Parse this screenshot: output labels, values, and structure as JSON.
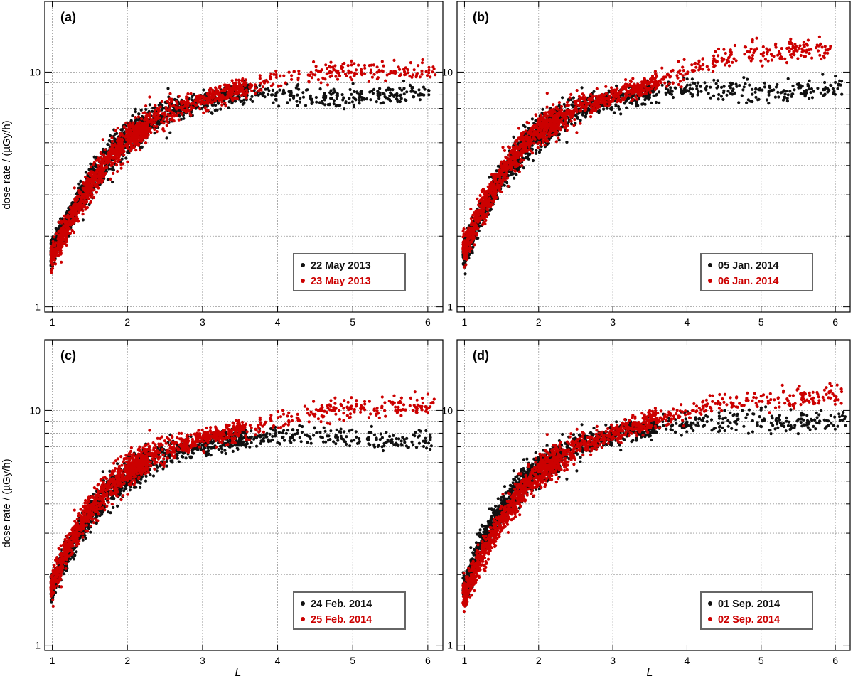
{
  "figure": {
    "ylabel": "dose rate / (µGy/h)",
    "xlabel": "L",
    "colors": {
      "black_series": "#111111",
      "red_series": "#cc0000",
      "grid": "#999999",
      "axis": "#000000",
      "legend_border": "#666666"
    }
  },
  "chart_data": [
    {
      "type": "scatter",
      "panel_label": "(a)",
      "xlim": [
        0.9,
        6.2
      ],
      "ylim": [
        0.95,
        20
      ],
      "yscale": "log",
      "xticks": [
        "1",
        "2",
        "3",
        "4",
        "5",
        "6"
      ],
      "yticks": [
        "1",
        "10"
      ],
      "grid": true,
      "legend_position": "bottom-right",
      "series": [
        {
          "name": "22 May 2013",
          "color": "#111111",
          "curve": [
            [
              1.0,
              1.7
            ],
            [
              1.2,
              2.3
            ],
            [
              1.5,
              3.4
            ],
            [
              1.8,
              4.6
            ],
            [
              2.0,
              5.3
            ],
            [
              2.3,
              6.1
            ],
            [
              2.6,
              6.8
            ],
            [
              3.0,
              7.5
            ],
            [
              3.5,
              8.2
            ],
            [
              4.0,
              8.0
            ],
            [
              4.5,
              7.7
            ],
            [
              5.0,
              7.8
            ],
            [
              5.5,
              8.0
            ],
            [
              6.0,
              8.3
            ]
          ],
          "end_x": 6.05
        },
        {
          "name": "23 May 2013",
          "color": "#cc0000",
          "curve": [
            [
              1.0,
              1.65
            ],
            [
              1.2,
              2.2
            ],
            [
              1.5,
              3.3
            ],
            [
              1.8,
              4.5
            ],
            [
              2.0,
              5.2
            ],
            [
              2.3,
              6.0
            ],
            [
              2.6,
              6.8
            ],
            [
              3.0,
              7.6
            ],
            [
              3.5,
              8.5
            ],
            [
              4.0,
              9.3
            ],
            [
              4.5,
              9.8
            ],
            [
              5.0,
              10.0
            ],
            [
              5.5,
              10.1
            ],
            [
              6.0,
              10.2
            ]
          ],
          "end_x": 6.1
        }
      ]
    },
    {
      "type": "scatter",
      "panel_label": "(b)",
      "xlim": [
        0.9,
        6.2
      ],
      "ylim": [
        0.95,
        20
      ],
      "yscale": "log",
      "xticks": [
        "1",
        "2",
        "3",
        "4",
        "5",
        "6"
      ],
      "yticks": [
        "1",
        "10"
      ],
      "grid": true,
      "legend_position": "bottom-right",
      "series": [
        {
          "name": "05 Jan. 2014",
          "color": "#111111",
          "curve": [
            [
              1.0,
              1.7
            ],
            [
              1.2,
              2.4
            ],
            [
              1.5,
              3.6
            ],
            [
              1.8,
              4.8
            ],
            [
              2.0,
              5.5
            ],
            [
              2.3,
              6.3
            ],
            [
              2.6,
              7.0
            ],
            [
              3.0,
              7.7
            ],
            [
              3.5,
              8.3
            ],
            [
              4.0,
              8.5
            ],
            [
              4.5,
              8.4
            ],
            [
              5.0,
              8.3
            ],
            [
              5.5,
              8.4
            ],
            [
              6.0,
              8.6
            ]
          ],
          "end_x": 6.1
        },
        {
          "name": "06 Jan. 2014",
          "color": "#cc0000",
          "curve": [
            [
              1.0,
              1.75
            ],
            [
              1.2,
              2.5
            ],
            [
              1.5,
              3.7
            ],
            [
              1.8,
              4.9
            ],
            [
              2.0,
              5.6
            ],
            [
              2.3,
              6.4
            ],
            [
              2.6,
              7.1
            ],
            [
              3.0,
              7.9
            ],
            [
              3.5,
              8.8
            ],
            [
              4.0,
              10.2
            ],
            [
              4.5,
              11.5
            ],
            [
              5.0,
              12.2
            ],
            [
              5.5,
              12.5
            ],
            [
              6.0,
              12.6
            ]
          ],
          "end_x": 5.95
        }
      ]
    },
    {
      "type": "scatter",
      "panel_label": "(c)",
      "xlim": [
        0.9,
        6.2
      ],
      "ylim": [
        0.95,
        20
      ],
      "yscale": "log",
      "xticks": [
        "1",
        "2",
        "3",
        "4",
        "5",
        "6"
      ],
      "yticks": [
        "1",
        "10"
      ],
      "grid": true,
      "legend_position": "bottom-right",
      "series": [
        {
          "name": "24 Feb. 2014",
          "color": "#111111",
          "curve": [
            [
              1.0,
              1.8
            ],
            [
              1.2,
              2.5
            ],
            [
              1.5,
              3.6
            ],
            [
              1.8,
              4.7
            ],
            [
              2.0,
              5.3
            ],
            [
              2.3,
              6.0
            ],
            [
              2.6,
              6.6
            ],
            [
              3.0,
              7.2
            ],
            [
              3.5,
              7.6
            ],
            [
              4.0,
              7.8
            ],
            [
              4.5,
              7.8
            ],
            [
              5.0,
              7.6
            ],
            [
              5.5,
              7.5
            ],
            [
              6.0,
              7.4
            ]
          ],
          "end_x": 6.05
        },
        {
          "name": "25 Feb. 2014",
          "color": "#cc0000",
          "curve": [
            [
              1.0,
              1.8
            ],
            [
              1.2,
              2.6
            ],
            [
              1.5,
              3.8
            ],
            [
              1.8,
              4.9
            ],
            [
              2.0,
              5.5
            ],
            [
              2.3,
              6.3
            ],
            [
              2.6,
              6.9
            ],
            [
              3.0,
              7.6
            ],
            [
              3.5,
              8.3
            ],
            [
              4.0,
              9.0
            ],
            [
              4.5,
              9.7
            ],
            [
              5.0,
              10.2
            ],
            [
              5.5,
              10.4
            ],
            [
              6.0,
              10.5
            ]
          ],
          "end_x": 6.1
        }
      ]
    },
    {
      "type": "scatter",
      "panel_label": "(d)",
      "xlim": [
        0.9,
        6.2
      ],
      "ylim": [
        0.95,
        20
      ],
      "yscale": "log",
      "xticks": [
        "1",
        "2",
        "3",
        "4",
        "5",
        "6"
      ],
      "yticks": [
        "1",
        "10"
      ],
      "grid": true,
      "legend_position": "bottom-right",
      "series": [
        {
          "name": "01 Sep. 2014",
          "color": "#111111",
          "curve": [
            [
              1.0,
              1.7
            ],
            [
              1.2,
              2.6
            ],
            [
              1.5,
              3.8
            ],
            [
              1.8,
              5.0
            ],
            [
              2.0,
              5.6
            ],
            [
              2.3,
              6.4
            ],
            [
              2.6,
              7.1
            ],
            [
              3.0,
              7.9
            ],
            [
              3.5,
              8.4
            ],
            [
              4.0,
              8.8
            ],
            [
              4.5,
              9.0
            ],
            [
              5.0,
              9.0
            ],
            [
              5.5,
              9.0
            ],
            [
              6.0,
              9.2
            ]
          ],
          "end_x": 6.15
        },
        {
          "name": "02 Sep. 2014",
          "color": "#cc0000",
          "curve": [
            [
              1.0,
              1.65
            ],
            [
              1.2,
              2.3
            ],
            [
              1.5,
              3.4
            ],
            [
              1.8,
              4.6
            ],
            [
              2.0,
              5.4
            ],
            [
              2.3,
              6.3
            ],
            [
              2.6,
              7.1
            ],
            [
              3.0,
              8.0
            ],
            [
              3.5,
              9.0
            ],
            [
              4.0,
              10.0
            ],
            [
              4.5,
              10.8
            ],
            [
              5.0,
              11.2
            ],
            [
              5.5,
              11.4
            ],
            [
              6.0,
              11.6
            ]
          ],
          "end_x": 6.1
        }
      ]
    }
  ]
}
